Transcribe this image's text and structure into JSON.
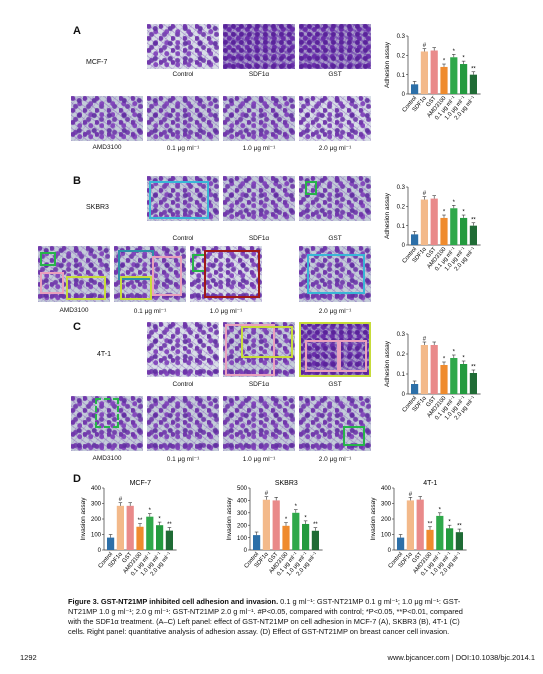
{
  "panels": [
    {
      "letter": "A",
      "row_label": "MCF-7",
      "top_labels": [
        "Control",
        "SDF1α",
        "GST"
      ],
      "bottom_labels": [
        "AMD3100",
        "0.1 μg ml⁻¹",
        "1.0 μg ml⁻¹",
        "2.0 μg ml⁻¹"
      ]
    },
    {
      "letter": "B",
      "row_label": "SKBR3",
      "top_labels": [
        "Control",
        "SDF1α",
        "GST"
      ],
      "bottom_labels": [
        "AMD3100",
        "0.1 μg ml⁻¹",
        "1.0 μg ml⁻¹",
        "2.0 μg ml⁻¹"
      ]
    },
    {
      "letter": "C",
      "row_label": "4T-1",
      "top_labels": [
        "Control",
        "SDF1α",
        "GST"
      ],
      "bottom_labels": [
        "AMD3100",
        "0.1 μg ml⁻¹",
        "1.0 μg ml⁻¹",
        "2.0 μg ml⁻¹"
      ]
    }
  ],
  "panel_d": {
    "letter": "D"
  },
  "colors": {
    "control": "#2c6fa8",
    "sdf1": "#f3b98a",
    "gst": "#e98a8a",
    "amd": "#ef8b2e",
    "c01": "#2fa84a",
    "c10": "#239a3e",
    "c20": "#1f6b35",
    "blue_box": "#39b6d6",
    "pink_box": "#e9a0bd",
    "yellow_box": "#c7dc3a",
    "green_box": "#27b34a",
    "dark_red_box": "#a01818",
    "teal_box": "#2e8fa8"
  },
  "chart_data": [
    {
      "type": "bar",
      "title": "",
      "ylabel": "Adhesion assay",
      "ylim": [
        0,
        0.3
      ],
      "yticks": [
        0,
        0.1,
        0.2,
        0.3
      ],
      "categories": [
        "Control",
        "SDF1α",
        "GST",
        "AMD3100",
        "0.1 μg ml⁻¹",
        "1.0 μg ml⁻¹",
        "2.0 μg ml⁻¹"
      ],
      "values": [
        0.05,
        0.22,
        0.225,
        0.14,
        0.19,
        0.155,
        0.1
      ],
      "annotations": [
        "",
        "#",
        "",
        "*",
        "*",
        "*",
        "**"
      ]
    },
    {
      "type": "bar",
      "title": "",
      "ylabel": "Adhesion assay",
      "ylim": [
        0,
        0.3
      ],
      "yticks": [
        0,
        0.1,
        0.2,
        0.3
      ],
      "categories": [
        "Control",
        "SDF1α",
        "GST",
        "AMD3100",
        "0.1 μg ml⁻¹",
        "1.0 μg ml⁻¹",
        "2.0 μg ml⁻¹"
      ],
      "values": [
        0.055,
        0.235,
        0.24,
        0.14,
        0.19,
        0.14,
        0.1
      ],
      "annotations": [
        "",
        "#",
        "",
        "*",
        "*",
        "*",
        "**"
      ]
    },
    {
      "type": "bar",
      "title": "",
      "ylabel": "Adhesion assay",
      "ylim": [
        0,
        0.3
      ],
      "yticks": [
        0,
        0.1,
        0.2,
        0.3
      ],
      "categories": [
        "Control",
        "SDF1α",
        "GST",
        "AMD3100",
        "0.1 μg ml⁻¹",
        "1.0 μg ml⁻¹",
        "2.0 μg ml⁻¹"
      ],
      "values": [
        0.05,
        0.245,
        0.245,
        0.145,
        0.18,
        0.15,
        0.105
      ],
      "annotations": [
        "",
        "#",
        "",
        "*",
        "*",
        "*",
        "**"
      ]
    },
    {
      "type": "bar",
      "title": "MCF-7",
      "ylabel": "Invasion assay",
      "ylim": [
        0,
        400
      ],
      "yticks": [
        0,
        100,
        200,
        300,
        400
      ],
      "categories": [
        "Control",
        "SDF1α",
        "GST",
        "AMD3100",
        "0.1 μg ml⁻¹",
        "1.0 μg ml⁻¹",
        "2.0 μg ml⁻¹"
      ],
      "values": [
        80,
        285,
        285,
        150,
        215,
        160,
        125
      ],
      "annotations": [
        "",
        "#",
        "",
        "**",
        "*",
        "*",
        "**"
      ]
    },
    {
      "type": "bar",
      "title": "SKBR3",
      "ylabel": "Invasion assay",
      "ylim": [
        0,
        500
      ],
      "yticks": [
        0,
        100,
        200,
        300,
        400,
        500
      ],
      "categories": [
        "Control",
        "SDF1α",
        "GST",
        "AMD3100",
        "0.1 μg ml⁻¹",
        "1.0 μg ml⁻¹",
        "2.0 μg ml⁻¹"
      ],
      "values": [
        120,
        405,
        400,
        195,
        300,
        210,
        155
      ],
      "annotations": [
        "",
        "#",
        "",
        "*",
        "*",
        "*",
        "**"
      ]
    },
    {
      "type": "bar",
      "title": "4T-1",
      "ylabel": "Invasion assay",
      "ylim": [
        0,
        400
      ],
      "yticks": [
        0,
        100,
        200,
        300,
        400
      ],
      "categories": [
        "Control",
        "SDF1α",
        "GST",
        "AMD3100",
        "0.1 μg ml⁻¹",
        "1.0 μg ml⁻¹",
        "2.0 μg ml⁻¹"
      ],
      "values": [
        80,
        320,
        325,
        130,
        220,
        140,
        115
      ],
      "annotations": [
        "",
        "#",
        "",
        "**",
        "*",
        "*",
        "**"
      ]
    }
  ],
  "caption": {
    "bold": "Figure 3. GST-NT21MP inhibited cell adhesion and invasion.",
    "text": " 0.1 g ml⁻¹: GST-NT21MP 0.1 g ml⁻¹; 1.0 μg ml⁻¹: GST-NT21MP 1.0 g ml⁻¹; 2.0 g ml⁻¹: GST-NT21MP 2.0 g ml⁻¹. #P<0.05, compared with control; *P<0.05, **P<0.01, compared with the SDF1α treatment. (A–C) Left panel: effect of GST-NT21MP on cell adhesion in MCF-7 (A), SKBR3 (B), 4T-1 (C) cells. Right panel: quantitative analysis of adhesion assay. (D) Effect of GST-NT21MP on breast cancer cell invasion."
  },
  "footer": {
    "page_number": "1292",
    "journal": "www.bjcancer.com | DOI:10.1038/bjc.2014.1"
  }
}
